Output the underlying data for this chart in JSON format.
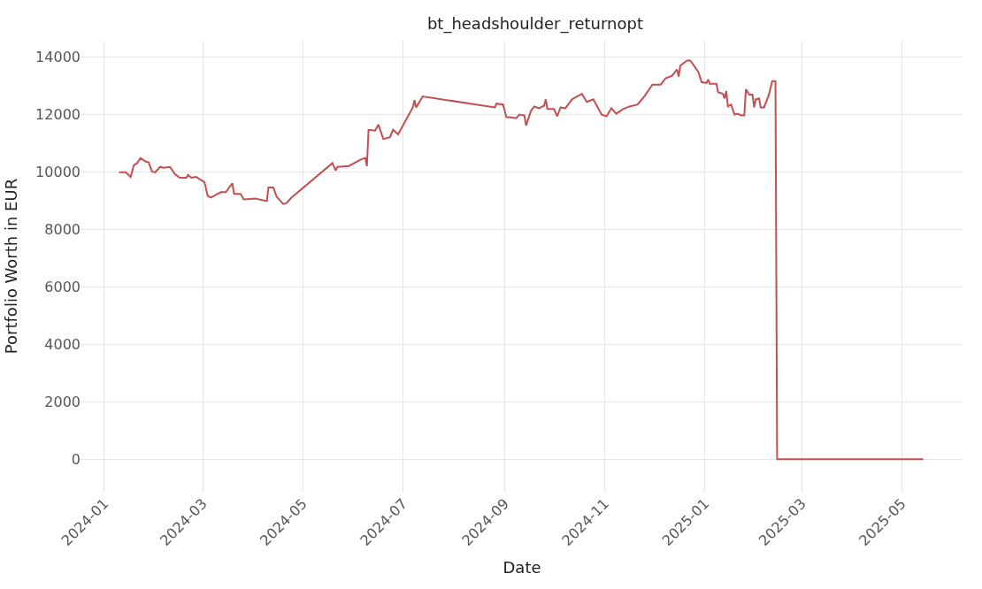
{
  "chart_data": {
    "type": "line",
    "title": "bt_headshoulder_returnopt",
    "xlabel": "Date",
    "ylabel": "Portfolio Worth in EUR",
    "xlim": [
      "2023-12-18",
      "2025-06-07"
    ],
    "xticks": [
      {
        "value": "2024-01-01",
        "label": "2024-01"
      },
      {
        "value": "2024-03-01",
        "label": "2024-03"
      },
      {
        "value": "2024-05-01",
        "label": "2024-05"
      },
      {
        "value": "2024-07-01",
        "label": "2024-07"
      },
      {
        "value": "2024-09-01",
        "label": "2024-09"
      },
      {
        "value": "2024-11-01",
        "label": "2024-11"
      },
      {
        "value": "2025-01-01",
        "label": "2025-01"
      },
      {
        "value": "2025-03-01",
        "label": "2025-03"
      },
      {
        "value": "2025-05-01",
        "label": "2025-05"
      }
    ],
    "ylim": [
      -1130,
      14560
    ],
    "yticks": [
      0,
      2000,
      4000,
      6000,
      8000,
      10000,
      12000,
      14000
    ],
    "grid": true,
    "line_style": "solid",
    "series": [
      {
        "color": "#c44e52",
        "x": [
          "2024-01-10",
          "2024-01-14",
          "2024-01-17",
          "2024-01-19",
          "2024-01-21",
          "2024-01-23",
          "2024-01-26",
          "2024-01-28",
          "2024-01-30",
          "2024-02-01",
          "2024-02-04",
          "2024-02-06",
          "2024-02-10",
          "2024-02-13",
          "2024-02-16",
          "2024-02-20",
          "2024-02-21",
          "2024-02-23",
          "2024-02-26",
          "2024-03-01",
          "2024-03-02",
          "2024-03-04",
          "2024-03-06",
          "2024-03-10",
          "2024-03-12",
          "2024-03-15",
          "2024-03-19",
          "2024-03-20",
          "2024-03-24",
          "2024-03-26",
          "2024-04-02",
          "2024-04-09",
          "2024-04-10",
          "2024-04-13",
          "2024-04-15",
          "2024-04-19",
          "2024-04-21",
          "2024-04-24",
          "2024-05-19",
          "2024-05-21",
          "2024-05-22",
          "2024-05-29",
          "2024-06-05",
          "2024-06-08",
          "2024-06-09",
          "2024-06-10",
          "2024-06-14",
          "2024-06-16",
          "2024-06-19",
          "2024-06-23",
          "2024-06-25",
          "2024-06-28",
          "2024-07-07",
          "2024-07-08",
          "2024-07-09",
          "2024-07-11",
          "2024-07-13",
          "2024-08-26",
          "2024-08-27",
          "2024-08-31",
          "2024-09-02",
          "2024-09-04",
          "2024-09-08",
          "2024-09-10",
          "2024-09-13",
          "2024-09-14",
          "2024-09-17",
          "2024-09-19",
          "2024-09-22",
          "2024-09-25",
          "2024-09-26",
          "2024-09-27",
          "2024-10-01",
          "2024-10-03",
          "2024-10-05",
          "2024-10-08",
          "2024-10-12",
          "2024-10-15",
          "2024-10-18",
          "2024-10-21",
          "2024-10-25",
          "2024-10-30",
          "2024-11-02",
          "2024-11-05",
          "2024-11-08",
          "2024-11-12",
          "2024-11-16",
          "2024-11-21",
          "2024-11-25",
          "2024-11-30",
          "2024-12-05",
          "2024-12-08",
          "2024-12-12",
          "2024-12-15",
          "2024-12-16",
          "2024-12-17",
          "2024-12-21",
          "2024-12-23",
          "2024-12-25",
          "2024-12-28",
          "2024-12-30",
          "2025-01-02",
          "2025-01-03",
          "2025-01-04",
          "2025-01-08",
          "2025-01-09",
          "2025-01-12",
          "2025-01-13",
          "2025-01-14",
          "2025-01-15",
          "2025-01-17",
          "2025-01-19",
          "2025-01-21",
          "2025-01-23",
          "2025-01-25",
          "2025-01-26",
          "2025-01-28",
          "2025-01-30",
          "2025-01-31",
          "2025-02-01",
          "2025-02-03",
          "2025-02-04",
          "2025-02-06",
          "2025-02-09",
          "2025-02-11",
          "2025-02-13",
          "2025-02-14",
          "2025-05-14"
        ],
        "values": [
          9980,
          9980,
          9820,
          10230,
          10300,
          10480,
          10360,
          10330,
          10010,
          9980,
          10170,
          10140,
          10170,
          9920,
          9790,
          9790,
          9890,
          9790,
          9820,
          9670,
          9640,
          9160,
          9100,
          9230,
          9290,
          9290,
          9600,
          9230,
          9230,
          9040,
          9070,
          8980,
          9450,
          9450,
          9130,
          8880,
          8910,
          9100,
          10300,
          10040,
          10170,
          10200,
          10420,
          10480,
          10200,
          11460,
          11430,
          11640,
          11140,
          11200,
          11460,
          11300,
          12240,
          12490,
          12240,
          12430,
          12620,
          12240,
          12370,
          12340,
          11900,
          11900,
          11860,
          11990,
          11960,
          11610,
          12120,
          12270,
          12210,
          12300,
          12520,
          12180,
          12180,
          11930,
          12240,
          12210,
          12520,
          12620,
          12710,
          12430,
          12520,
          11990,
          11930,
          12210,
          12020,
          12180,
          12270,
          12340,
          12620,
          13030,
          13030,
          13250,
          13340,
          13560,
          13310,
          13690,
          13870,
          13870,
          13720,
          13470,
          13120,
          13090,
          13210,
          13060,
          13060,
          12770,
          12710,
          12550,
          12810,
          12270,
          12340,
          11990,
          12020,
          11960,
          11960,
          12870,
          12680,
          12680,
          12240,
          12520,
          12550,
          12240,
          12240,
          12680,
          13150,
          13150,
          0,
          0
        ]
      }
    ]
  }
}
